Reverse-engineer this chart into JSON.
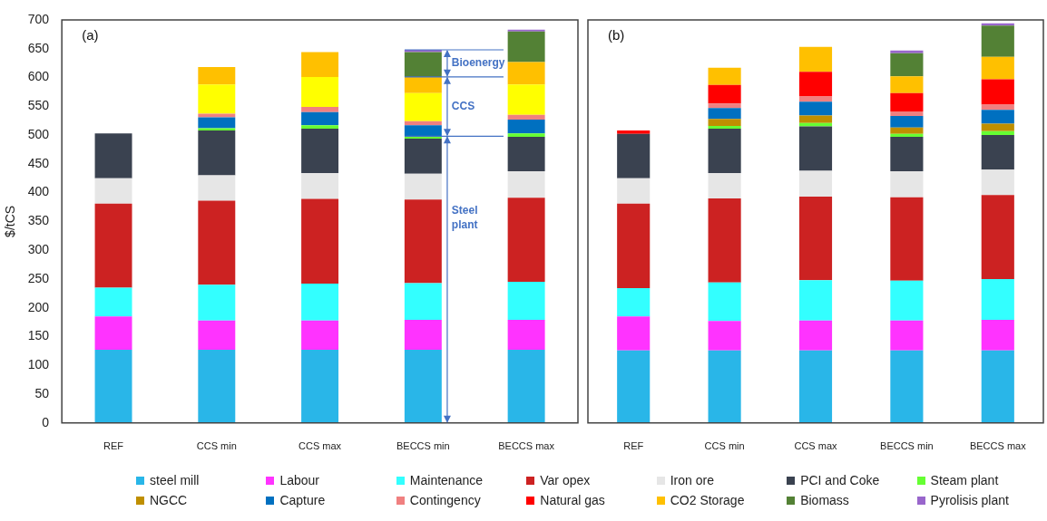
{
  "chart_data": [
    {
      "type": "bar",
      "title": "(a)",
      "ylabel": "$/tCS",
      "stacked": true,
      "legend": "bottom",
      "categories": [
        "REF",
        "CCS min",
        "CCS max",
        "BECCS min",
        "BECCS max"
      ],
      "ylim": [
        0,
        700
      ],
      "yticks": [
        0,
        50,
        100,
        150,
        200,
        250,
        300,
        350,
        400,
        450,
        500,
        550,
        600,
        650,
        700
      ],
      "annotations": [
        "Steel plant",
        "CCS",
        "Bioenergy"
      ],
      "series": [
        {
          "name": "steel mill",
          "color": "#29b6e8",
          "values": [
            127,
            127,
            127,
            127,
            127
          ]
        },
        {
          "name": "Labour",
          "color": "#ff33ff",
          "values": [
            58,
            51,
            51,
            52,
            52
          ]
        },
        {
          "name": "Maintenance",
          "color": "#33ffff",
          "values": [
            50,
            62,
            64,
            64,
            66
          ]
        },
        {
          "name": "Var opex",
          "color": "#cc2222",
          "values": [
            146,
            146,
            147,
            145,
            146
          ]
        },
        {
          "name": "Iron ore",
          "color": "#e6e6e6",
          "values": [
            44,
            44,
            45,
            45,
            46
          ]
        },
        {
          "name": "PCI and Coke",
          "color": "#3a4250",
          "values": [
            78,
            78,
            77,
            61,
            60
          ]
        },
        {
          "name": "Steam plant",
          "color": "#66ff33",
          "values": [
            null,
            4,
            6,
            4,
            6
          ]
        },
        {
          "name": "Capture",
          "color": "#0070c0",
          "values": [
            null,
            19,
            23,
            19,
            24
          ]
        },
        {
          "name": "Contingency",
          "color": "#f08080",
          "values": [
            null,
            6,
            9,
            7,
            8
          ]
        },
        {
          "color": "#ffff00",
          "values": [
            null,
            51,
            52,
            49,
            53
          ]
        },
        {
          "name": "CO2 Storage",
          "color": "#ffc000",
          "values": [
            null,
            30,
            43,
            28,
            39
          ]
        },
        {
          "name": "Biomass",
          "color": "#538135",
          "values": [
            null,
            null,
            null,
            43,
            53
          ]
        },
        {
          "name": "Pyrolisis plant",
          "color": "#9966cc",
          "values": [
            null,
            null,
            null,
            4,
            3
          ]
        }
      ]
    },
    {
      "type": "bar",
      "title": "(b)",
      "stacked": true,
      "tick_labels": "x",
      "categories": [
        "REF",
        "CCS min",
        "CCS max",
        "BECCS min",
        "BECCS max"
      ],
      "ylim": [
        0,
        700
      ],
      "legend": "bottom",
      "series": [
        {
          "name": "steel mill",
          "color": "#29b6e8",
          "values": [
            126,
            126,
            126,
            126,
            126
          ]
        },
        {
          "name": "Labour",
          "color": "#ff33ff",
          "values": [
            59,
            51,
            52,
            52,
            53
          ]
        },
        {
          "name": "Maintenance",
          "color": "#33ffff",
          "values": [
            49,
            67,
            70,
            69,
            71
          ]
        },
        {
          "name": "Var opex",
          "color": "#cc2222",
          "values": [
            147,
            146,
            145,
            145,
            146
          ]
        },
        {
          "name": "Iron ore",
          "color": "#e6e6e6",
          "values": [
            44,
            44,
            45,
            45,
            44
          ]
        },
        {
          "name": "PCI and Coke",
          "color": "#3a4250",
          "values": [
            77,
            77,
            77,
            60,
            60
          ]
        },
        {
          "name": "Steam plant",
          "color": "#66ff33",
          "values": [
            null,
            5,
            6,
            5,
            7
          ]
        },
        {
          "name": "NGCC",
          "color": "#bf8f00",
          "values": [
            null,
            12,
            13,
            11,
            13
          ]
        },
        {
          "name": "Capture",
          "color": "#0070c0",
          "values": [
            null,
            19,
            24,
            20,
            24
          ]
        },
        {
          "name": "Contingency",
          "color": "#f08080",
          "values": [
            null,
            8,
            9,
            8,
            9
          ]
        },
        {
          "name": "Natural gas",
          "color": "#ff0000",
          "values": [
            6,
            32,
            43,
            32,
            44
          ]
        },
        {
          "name": "CO2 Storage",
          "color": "#ffc000",
          "values": [
            null,
            30,
            43,
            29,
            39
          ]
        },
        {
          "name": "Biomass",
          "color": "#538135",
          "values": [
            null,
            null,
            null,
            40,
            54
          ]
        },
        {
          "name": "Pyrolisis plant",
          "color": "#9966cc",
          "values": [
            null,
            null,
            null,
            5,
            4
          ]
        }
      ]
    }
  ]
}
